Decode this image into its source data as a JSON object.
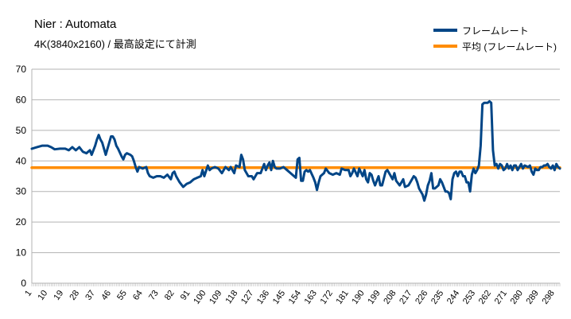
{
  "chart_data": {
    "type": "line",
    "title": "Nier : Automata",
    "subtitle": "4K(3840x2160) /  最高設定にて計測",
    "xlabel": "",
    "ylabel": "",
    "ylim": [
      0,
      70
    ],
    "yticks": [
      0,
      10,
      20,
      30,
      40,
      50,
      60,
      70
    ],
    "xlim": [
      1,
      301
    ],
    "xticks": [
      1,
      10,
      19,
      28,
      37,
      46,
      55,
      64,
      73,
      82,
      91,
      100,
      109,
      118,
      127,
      136,
      145,
      154,
      163,
      172,
      181,
      190,
      199,
      208,
      217,
      226,
      235,
      244,
      253,
      262,
      271,
      280,
      289,
      298
    ],
    "grid": true,
    "legend_position": "top-right",
    "series": [
      {
        "name": "フレームレート",
        "color": "#004586",
        "points": [
          [
            1,
            44
          ],
          [
            4,
            44.5
          ],
          [
            7,
            45
          ],
          [
            10,
            45
          ],
          [
            12,
            44.5
          ],
          [
            14,
            43.8
          ],
          [
            17,
            44
          ],
          [
            20,
            44
          ],
          [
            22,
            43.5
          ],
          [
            24,
            44.5
          ],
          [
            26,
            43.5
          ],
          [
            28,
            44.5
          ],
          [
            30,
            43
          ],
          [
            32,
            42.5
          ],
          [
            34,
            43.5
          ],
          [
            35,
            42
          ],
          [
            37,
            45
          ],
          [
            38,
            47
          ],
          [
            39,
            48.5
          ],
          [
            40,
            47
          ],
          [
            41,
            46
          ],
          [
            43,
            42
          ],
          [
            45,
            46
          ],
          [
            46,
            48
          ],
          [
            47,
            48
          ],
          [
            48,
            47
          ],
          [
            49,
            45
          ],
          [
            50,
            44
          ],
          [
            52,
            41.5
          ],
          [
            53,
            40.5
          ],
          [
            54,
            42
          ],
          [
            55,
            42.5
          ],
          [
            57,
            42
          ],
          [
            58,
            41.5
          ],
          [
            59,
            40
          ],
          [
            60,
            38
          ],
          [
            61,
            36.5
          ],
          [
            62,
            38
          ],
          [
            64,
            37.5
          ],
          [
            66,
            38
          ],
          [
            67,
            36
          ],
          [
            68,
            35
          ],
          [
            70,
            34.5
          ],
          [
            72,
            35
          ],
          [
            74,
            35
          ],
          [
            76,
            34.5
          ],
          [
            78,
            35.5
          ],
          [
            80,
            34
          ],
          [
            81,
            36
          ],
          [
            82,
            36.5
          ],
          [
            83,
            35
          ],
          [
            85,
            33
          ],
          [
            87,
            31.5
          ],
          [
            89,
            32.5
          ],
          [
            91,
            33
          ],
          [
            93,
            34
          ],
          [
            95,
            34.5
          ],
          [
            97,
            35
          ],
          [
            98,
            37
          ],
          [
            99,
            35
          ],
          [
            101,
            38.5
          ],
          [
            102,
            37
          ],
          [
            103,
            37.5
          ],
          [
            105,
            38
          ],
          [
            107,
            37.5
          ],
          [
            109,
            36
          ],
          [
            111,
            38
          ],
          [
            113,
            37
          ],
          [
            114,
            38
          ],
          [
            116,
            36
          ],
          [
            117,
            38.5
          ],
          [
            119,
            38
          ],
          [
            120,
            42
          ],
          [
            121,
            40.5
          ],
          [
            122,
            37
          ],
          [
            123,
            36
          ],
          [
            124,
            35
          ],
          [
            126,
            35
          ],
          [
            127,
            34
          ],
          [
            129,
            36
          ],
          [
            131,
            36
          ],
          [
            132,
            37.5
          ],
          [
            133,
            39
          ],
          [
            134,
            37
          ],
          [
            135,
            38.5
          ],
          [
            136,
            39.5
          ],
          [
            137,
            37
          ],
          [
            138,
            40
          ],
          [
            139,
            38
          ],
          [
            140,
            37.5
          ],
          [
            142,
            37.5
          ],
          [
            144,
            38
          ],
          [
            146,
            37
          ],
          [
            148,
            36
          ],
          [
            150,
            35
          ],
          [
            151,
            34.5
          ],
          [
            152,
            40.5
          ],
          [
            153,
            41
          ],
          [
            154,
            33.5
          ],
          [
            155,
            33.5
          ],
          [
            156,
            36.5
          ],
          [
            157,
            37
          ],
          [
            158,
            36.5
          ],
          [
            159,
            37
          ],
          [
            161,
            34.5
          ],
          [
            162,
            33
          ],
          [
            163,
            30.5
          ],
          [
            164,
            33
          ],
          [
            165,
            35
          ],
          [
            167,
            36
          ],
          [
            168,
            37.5
          ],
          [
            170,
            36
          ],
          [
            172,
            35.5
          ],
          [
            174,
            36
          ],
          [
            176,
            35.5
          ],
          [
            177,
            37.5
          ],
          [
            179,
            37
          ],
          [
            181,
            37
          ],
          [
            182,
            35
          ],
          [
            183,
            36
          ],
          [
            184,
            37.5
          ],
          [
            186,
            35
          ],
          [
            187,
            37.5
          ],
          [
            189,
            35
          ],
          [
            190,
            37
          ],
          [
            191,
            34
          ],
          [
            192,
            33
          ],
          [
            193,
            36
          ],
          [
            194,
            35.5
          ],
          [
            195,
            33.5
          ],
          [
            196,
            32
          ],
          [
            197,
            33.5
          ],
          [
            198,
            35
          ],
          [
            199,
            32
          ],
          [
            200,
            32
          ],
          [
            202,
            36.5
          ],
          [
            203,
            37
          ],
          [
            204,
            36
          ],
          [
            206,
            34
          ],
          [
            207,
            36
          ],
          [
            208,
            33.5
          ],
          [
            210,
            32
          ],
          [
            211,
            33
          ],
          [
            212,
            34
          ],
          [
            213,
            31.5
          ],
          [
            215,
            32
          ],
          [
            216,
            33
          ],
          [
            218,
            35
          ],
          [
            219,
            34.5
          ],
          [
            220,
            33
          ],
          [
            221,
            31
          ],
          [
            222,
            30
          ],
          [
            223,
            29
          ],
          [
            224,
            27
          ],
          [
            225,
            29
          ],
          [
            226,
            32
          ],
          [
            227,
            33.5
          ],
          [
            228,
            36
          ],
          [
            229,
            31
          ],
          [
            230,
            31
          ],
          [
            232,
            32
          ],
          [
            233,
            34
          ],
          [
            234,
            33
          ],
          [
            235,
            31.5
          ],
          [
            236,
            30
          ],
          [
            237,
            30
          ],
          [
            238,
            29.5
          ],
          [
            239,
            27.5
          ],
          [
            240,
            34
          ],
          [
            241,
            36
          ],
          [
            242,
            36.5
          ],
          [
            243,
            35
          ],
          [
            244,
            36.5
          ],
          [
            245,
            36.5
          ],
          [
            246,
            35
          ],
          [
            247,
            35
          ],
          [
            248,
            33
          ],
          [
            249,
            33
          ],
          [
            250,
            30
          ],
          [
            251,
            35.5
          ],
          [
            252,
            37.5
          ],
          [
            253,
            36
          ],
          [
            254,
            37
          ],
          [
            255,
            38.5
          ],
          [
            256,
            45
          ],
          [
            257,
            58.5
          ],
          [
            258,
            59
          ],
          [
            260,
            59
          ],
          [
            261,
            59.5
          ],
          [
            262,
            59
          ],
          [
            263,
            43.5
          ],
          [
            264,
            38.5
          ],
          [
            265,
            39
          ],
          [
            266,
            37.5
          ],
          [
            267,
            39
          ],
          [
            268,
            38.5
          ],
          [
            269,
            37
          ],
          [
            270,
            37.5
          ],
          [
            271,
            39
          ],
          [
            272,
            37.5
          ],
          [
            273,
            38.5
          ],
          [
            274,
            37
          ],
          [
            275,
            38.5
          ],
          [
            276,
            38.5
          ],
          [
            277,
            37
          ],
          [
            278,
            38
          ],
          [
            279,
            39
          ],
          [
            280,
            37.5
          ],
          [
            281,
            38.5
          ],
          [
            283,
            38
          ],
          [
            284,
            38.5
          ],
          [
            285,
            36.5
          ],
          [
            286,
            35.5
          ],
          [
            287,
            37.5
          ],
          [
            288,
            37
          ],
          [
            289,
            37
          ],
          [
            290,
            38
          ],
          [
            291,
            38
          ],
          [
            292,
            38.5
          ],
          [
            293,
            38.5
          ],
          [
            294,
            39
          ],
          [
            295,
            38
          ],
          [
            296,
            37.5
          ],
          [
            297,
            38.5
          ],
          [
            298,
            37
          ],
          [
            299,
            39
          ],
          [
            300,
            38
          ],
          [
            301,
            37.5
          ]
        ]
      },
      {
        "name": "平均 (フレームレート)",
        "color": "#ff8c00",
        "points": [
          [
            1,
            37.8
          ],
          [
            301,
            37.8
          ]
        ]
      }
    ]
  }
}
